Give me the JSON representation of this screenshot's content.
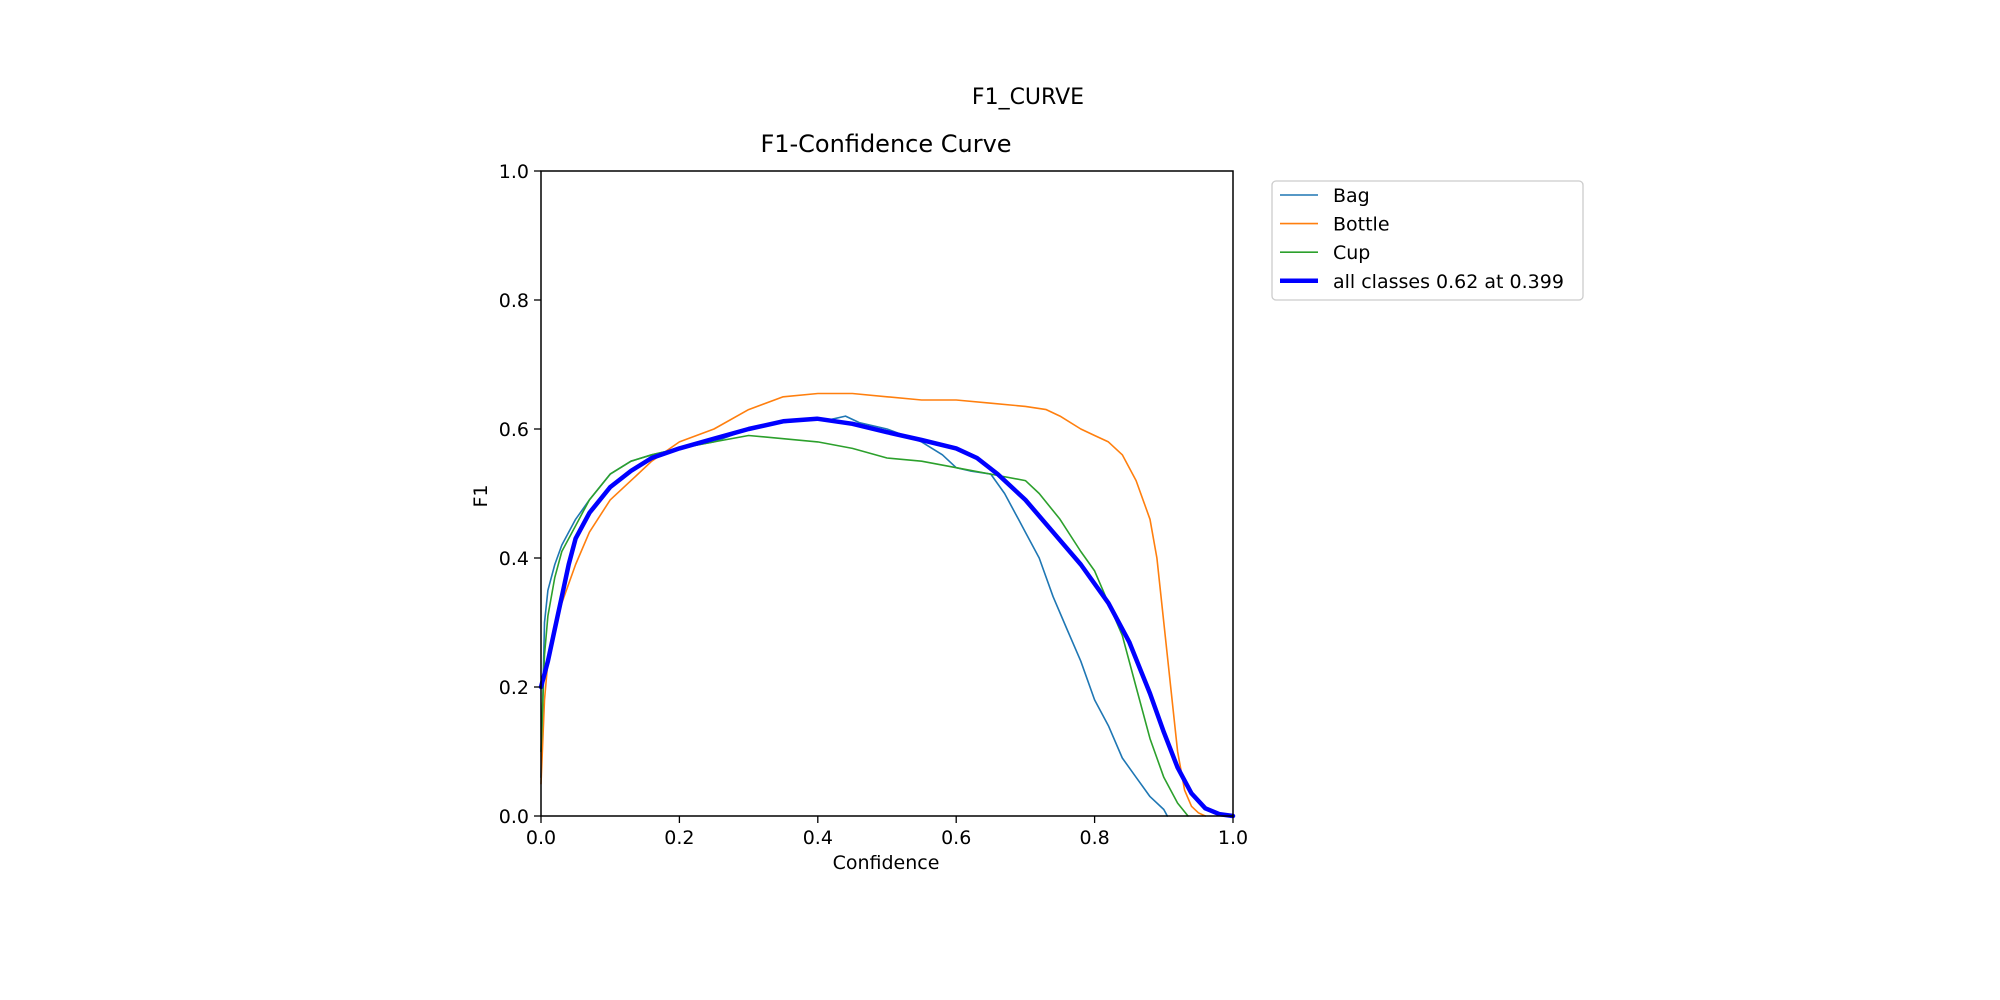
{
  "figure": {
    "suptitle": "F1_CURVE"
  },
  "chart_data": {
    "type": "line",
    "title": "F1-Confidence Curve",
    "xlabel": "Confidence",
    "ylabel": "F1",
    "xlim": [
      0,
      1
    ],
    "ylim": [
      0,
      1
    ],
    "xticks": [
      "0.0",
      "0.2",
      "0.4",
      "0.6",
      "0.8",
      "1.0"
    ],
    "yticks": [
      "0.0",
      "0.2",
      "0.4",
      "0.6",
      "0.8",
      "1.0"
    ],
    "grid": false,
    "legend_position": "outside-right",
    "series": [
      {
        "name": "Bag",
        "color": "#1f77b4",
        "width": 1.6,
        "points": [
          [
            0,
            0.06
          ],
          [
            0.005,
            0.3
          ],
          [
            0.01,
            0.35
          ],
          [
            0.02,
            0.39
          ],
          [
            0.03,
            0.42
          ],
          [
            0.05,
            0.46
          ],
          [
            0.07,
            0.49
          ],
          [
            0.1,
            0.53
          ],
          [
            0.13,
            0.55
          ],
          [
            0.16,
            0.56
          ],
          [
            0.2,
            0.57
          ],
          [
            0.25,
            0.58
          ],
          [
            0.3,
            0.6
          ],
          [
            0.35,
            0.61
          ],
          [
            0.4,
            0.615
          ],
          [
            0.42,
            0.615
          ],
          [
            0.44,
            0.62
          ],
          [
            0.46,
            0.61
          ],
          [
            0.5,
            0.6
          ],
          [
            0.55,
            0.58
          ],
          [
            0.58,
            0.56
          ],
          [
            0.6,
            0.54
          ],
          [
            0.62,
            0.535
          ],
          [
            0.65,
            0.53
          ],
          [
            0.67,
            0.5
          ],
          [
            0.69,
            0.46
          ],
          [
            0.7,
            0.44
          ],
          [
            0.72,
            0.4
          ],
          [
            0.74,
            0.34
          ],
          [
            0.76,
            0.29
          ],
          [
            0.78,
            0.24
          ],
          [
            0.8,
            0.18
          ],
          [
            0.82,
            0.14
          ],
          [
            0.84,
            0.09
          ],
          [
            0.86,
            0.06
          ],
          [
            0.88,
            0.03
          ],
          [
            0.9,
            0.01
          ],
          [
            0.905,
            0
          ]
        ]
      },
      {
        "name": "Bottle",
        "color": "#ff7f0e",
        "width": 1.6,
        "points": [
          [
            0,
            0.05
          ],
          [
            0.005,
            0.18
          ],
          [
            0.01,
            0.24
          ],
          [
            0.02,
            0.29
          ],
          [
            0.03,
            0.33
          ],
          [
            0.05,
            0.39
          ],
          [
            0.07,
            0.44
          ],
          [
            0.1,
            0.49
          ],
          [
            0.13,
            0.52
          ],
          [
            0.16,
            0.55
          ],
          [
            0.2,
            0.58
          ],
          [
            0.25,
            0.6
          ],
          [
            0.3,
            0.63
          ],
          [
            0.35,
            0.65
          ],
          [
            0.4,
            0.655
          ],
          [
            0.45,
            0.655
          ],
          [
            0.5,
            0.65
          ],
          [
            0.55,
            0.645
          ],
          [
            0.6,
            0.645
          ],
          [
            0.65,
            0.64
          ],
          [
            0.7,
            0.635
          ],
          [
            0.73,
            0.63
          ],
          [
            0.75,
            0.62
          ],
          [
            0.78,
            0.6
          ],
          [
            0.8,
            0.59
          ],
          [
            0.82,
            0.58
          ],
          [
            0.84,
            0.56
          ],
          [
            0.86,
            0.52
          ],
          [
            0.88,
            0.46
          ],
          [
            0.89,
            0.4
          ],
          [
            0.9,
            0.3
          ],
          [
            0.91,
            0.2
          ],
          [
            0.92,
            0.1
          ],
          [
            0.93,
            0.04
          ],
          [
            0.94,
            0.015
          ],
          [
            0.95,
            0.005
          ],
          [
            0.96,
            0
          ]
        ]
      },
      {
        "name": "Cup",
        "color": "#2ca02c",
        "width": 1.6,
        "points": [
          [
            0,
            0.1
          ],
          [
            0.005,
            0.25
          ],
          [
            0.01,
            0.31
          ],
          [
            0.02,
            0.37
          ],
          [
            0.03,
            0.41
          ],
          [
            0.05,
            0.45
          ],
          [
            0.07,
            0.49
          ],
          [
            0.1,
            0.53
          ],
          [
            0.13,
            0.55
          ],
          [
            0.16,
            0.56
          ],
          [
            0.2,
            0.57
          ],
          [
            0.25,
            0.58
          ],
          [
            0.3,
            0.59
          ],
          [
            0.35,
            0.585
          ],
          [
            0.4,
            0.58
          ],
          [
            0.45,
            0.57
          ],
          [
            0.5,
            0.555
          ],
          [
            0.55,
            0.55
          ],
          [
            0.6,
            0.54
          ],
          [
            0.65,
            0.53
          ],
          [
            0.7,
            0.52
          ],
          [
            0.72,
            0.5
          ],
          [
            0.75,
            0.46
          ],
          [
            0.78,
            0.41
          ],
          [
            0.8,
            0.38
          ],
          [
            0.82,
            0.33
          ],
          [
            0.84,
            0.28
          ],
          [
            0.86,
            0.2
          ],
          [
            0.88,
            0.12
          ],
          [
            0.9,
            0.06
          ],
          [
            0.92,
            0.02
          ],
          [
            0.935,
            0
          ]
        ]
      },
      {
        "name": "all classes 0.62 at 0.399",
        "color": "#0000ff",
        "width": 4.5,
        "points": [
          [
            0,
            0.2
          ],
          [
            0.01,
            0.24
          ],
          [
            0.02,
            0.29
          ],
          [
            0.03,
            0.34
          ],
          [
            0.04,
            0.39
          ],
          [
            0.05,
            0.43
          ],
          [
            0.07,
            0.47
          ],
          [
            0.1,
            0.51
          ],
          [
            0.13,
            0.535
          ],
          [
            0.16,
            0.555
          ],
          [
            0.2,
            0.57
          ],
          [
            0.25,
            0.585
          ],
          [
            0.3,
            0.6
          ],
          [
            0.35,
            0.612
          ],
          [
            0.399,
            0.616
          ],
          [
            0.45,
            0.608
          ],
          [
            0.5,
            0.595
          ],
          [
            0.55,
            0.583
          ],
          [
            0.6,
            0.57
          ],
          [
            0.63,
            0.555
          ],
          [
            0.66,
            0.53
          ],
          [
            0.7,
            0.49
          ],
          [
            0.74,
            0.44
          ],
          [
            0.78,
            0.39
          ],
          [
            0.82,
            0.33
          ],
          [
            0.85,
            0.27
          ],
          [
            0.88,
            0.19
          ],
          [
            0.9,
            0.13
          ],
          [
            0.92,
            0.075
          ],
          [
            0.94,
            0.035
          ],
          [
            0.96,
            0.012
          ],
          [
            0.98,
            0.003
          ],
          [
            1.0,
            0
          ]
        ]
      }
    ]
  }
}
